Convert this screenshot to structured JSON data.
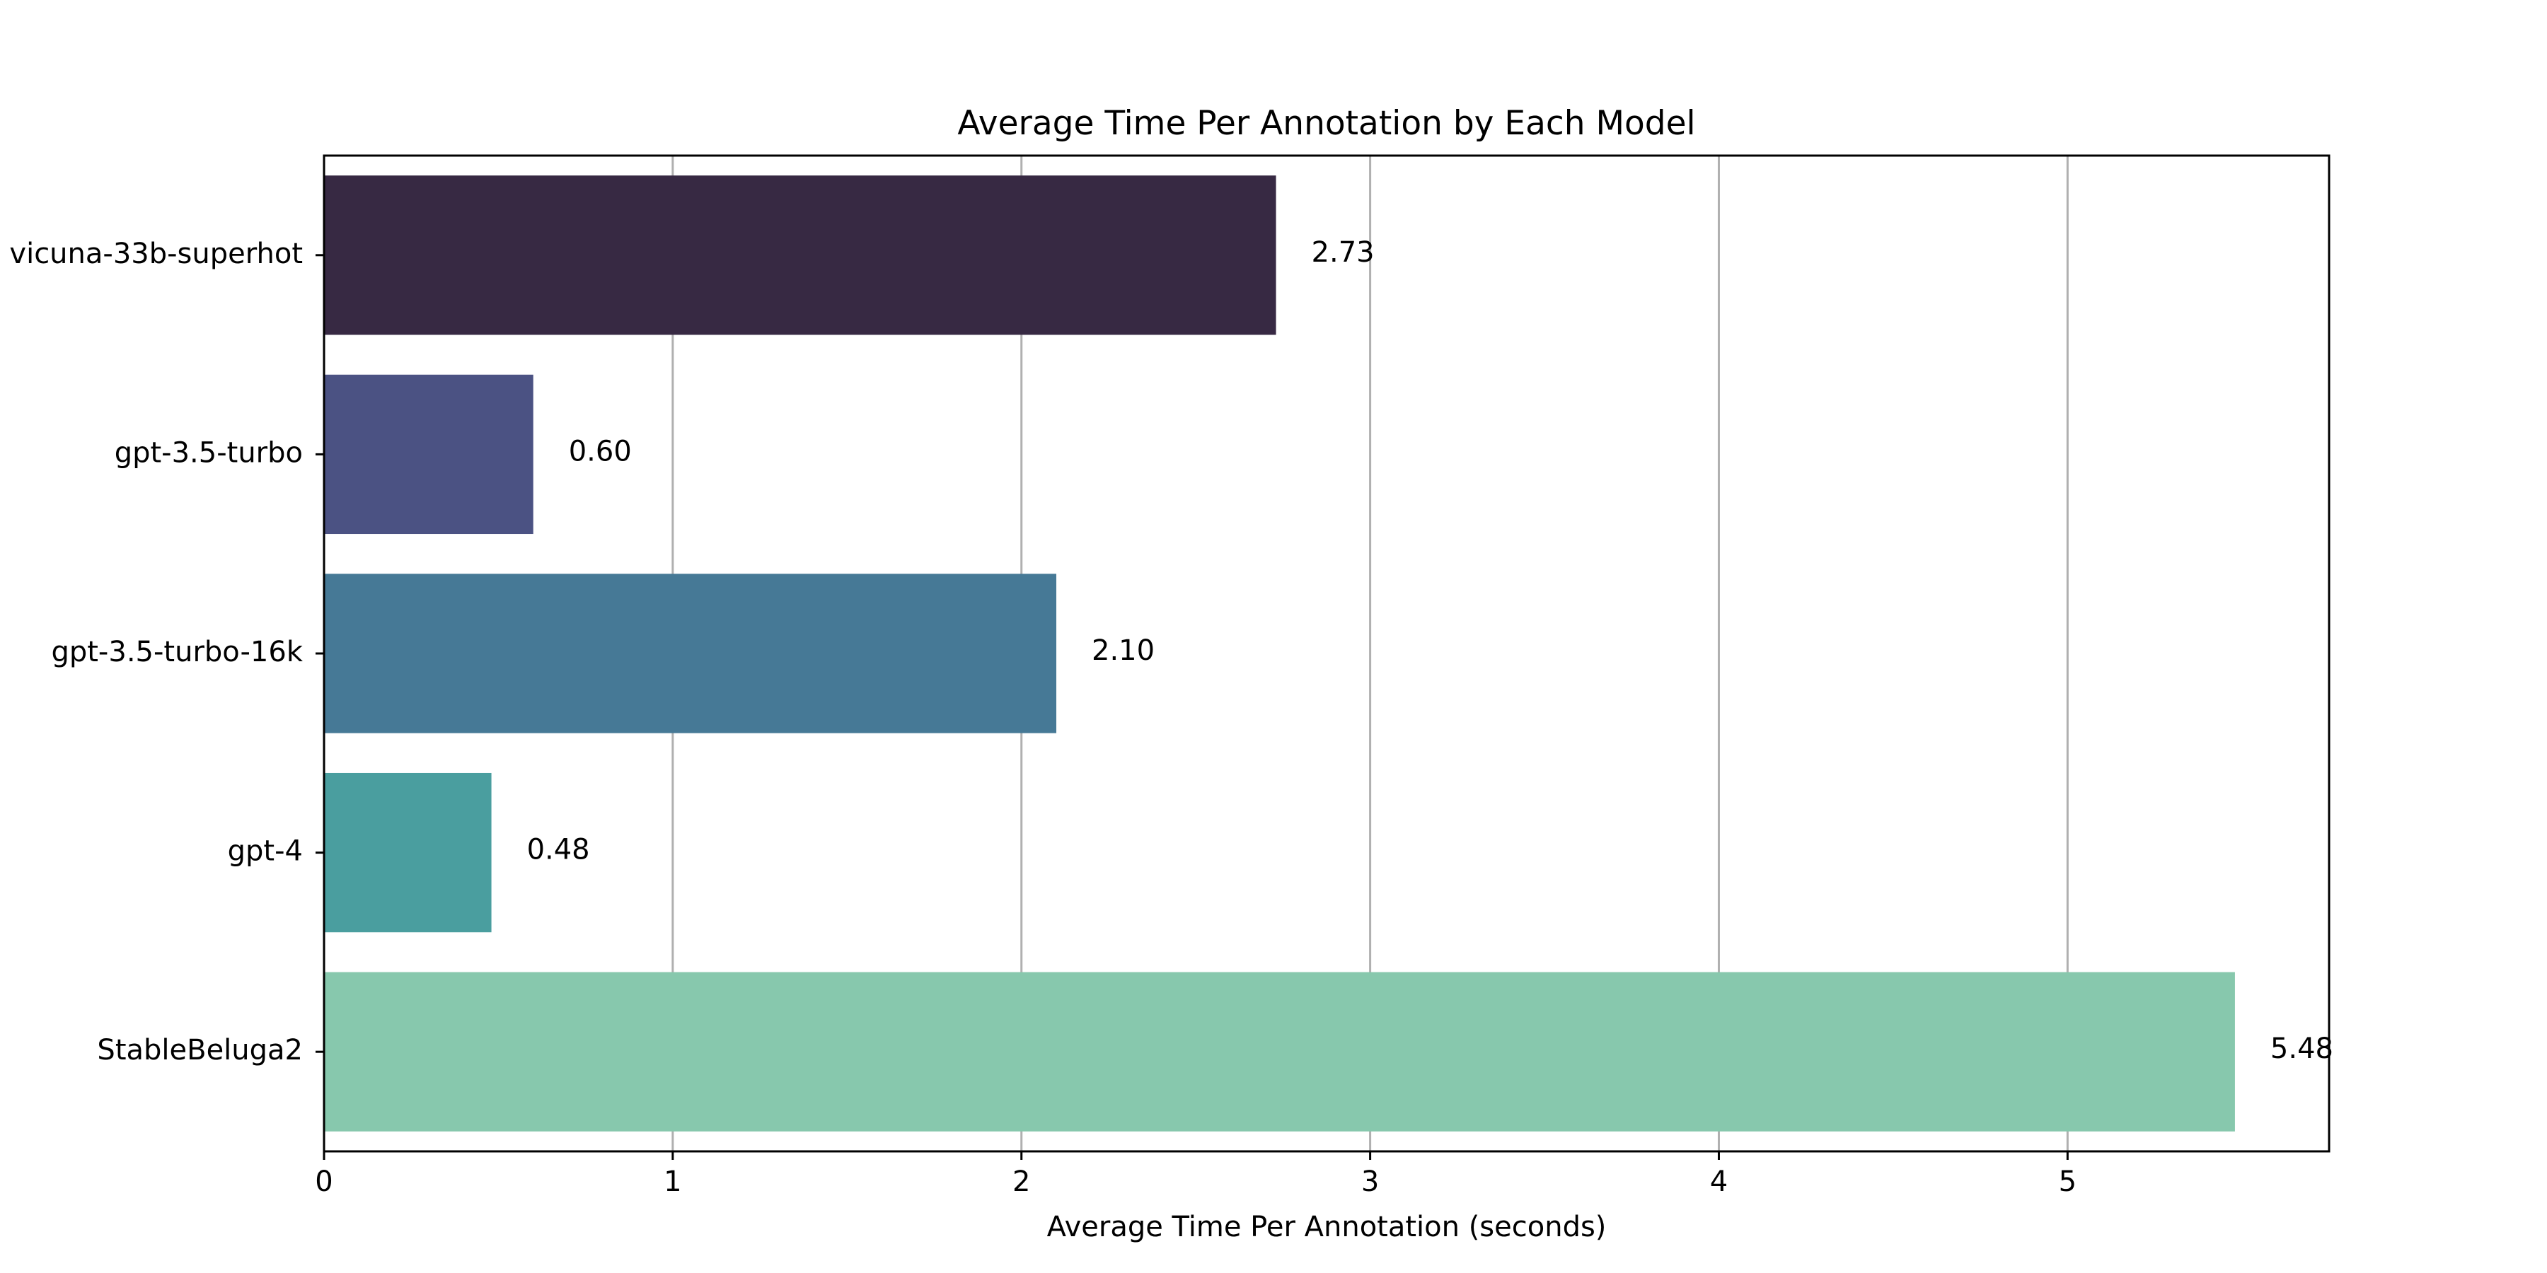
{
  "chart_data": {
    "type": "bar",
    "orientation": "horizontal",
    "title": "Average Time Per Annotation by Each Model",
    "xlabel": "Average Time Per Annotation (seconds)",
    "ylabel": "",
    "xlim": [
      0,
      5.75
    ],
    "x_ticks": [
      "0",
      "1",
      "2",
      "3",
      "4",
      "5"
    ],
    "categories": [
      "vicuna-33b-superhot",
      "gpt-3.5-turbo",
      "gpt-3.5-turbo-16k",
      "gpt-4",
      "StableBeluga2"
    ],
    "values": [
      2.73,
      0.6,
      2.1,
      0.48,
      5.48
    ],
    "value_labels": [
      "2.73",
      "0.60",
      "2.10",
      "0.48",
      "5.48"
    ],
    "colors": [
      "#372943",
      "#4b5283",
      "#467996",
      "#4a9e9f",
      "#87c8ad"
    ],
    "grid": {
      "x": true,
      "y": false,
      "color": "#b0b0b0"
    },
    "legend": "none"
  }
}
